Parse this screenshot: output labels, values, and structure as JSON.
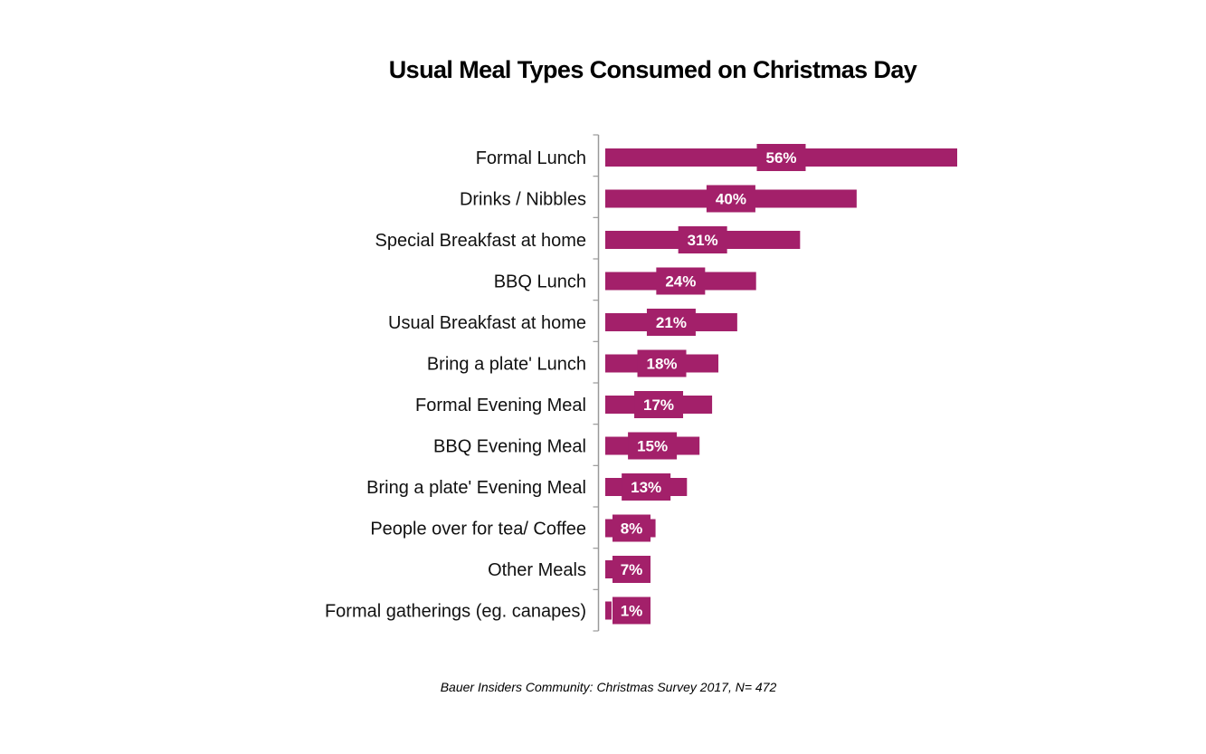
{
  "chart_data": {
    "type": "bar",
    "orientation": "horizontal",
    "title": "Usual Meal Types Consumed on Christmas Day",
    "categories": [
      "Formal Lunch",
      "Drinks / Nibbles",
      "Special Breakfast at home",
      "BBQ Lunch",
      "Usual Breakfast at home",
      "Bring a plate' Lunch",
      "Formal Evening Meal",
      "BBQ Evening Meal",
      "Bring a plate' Evening Meal",
      "People over for tea/ Coffee",
      "Other Meals",
      "Formal gatherings (eg. canapes)"
    ],
    "values": [
      56,
      40,
      31,
      24,
      21,
      18,
      17,
      15,
      13,
      8,
      7,
      1
    ],
    "data_labels": [
      "56%",
      "40%",
      "31%",
      "24%",
      "21%",
      "18%",
      "17%",
      "15%",
      "13%",
      "8%",
      "7%",
      "1%"
    ],
    "xlim": [
      0,
      56
    ],
    "grid": false,
    "legend": "none",
    "bar_color": "#a3206a",
    "footnote": "Bauer Insiders Community: Christmas Survey 2017, N= 472"
  }
}
